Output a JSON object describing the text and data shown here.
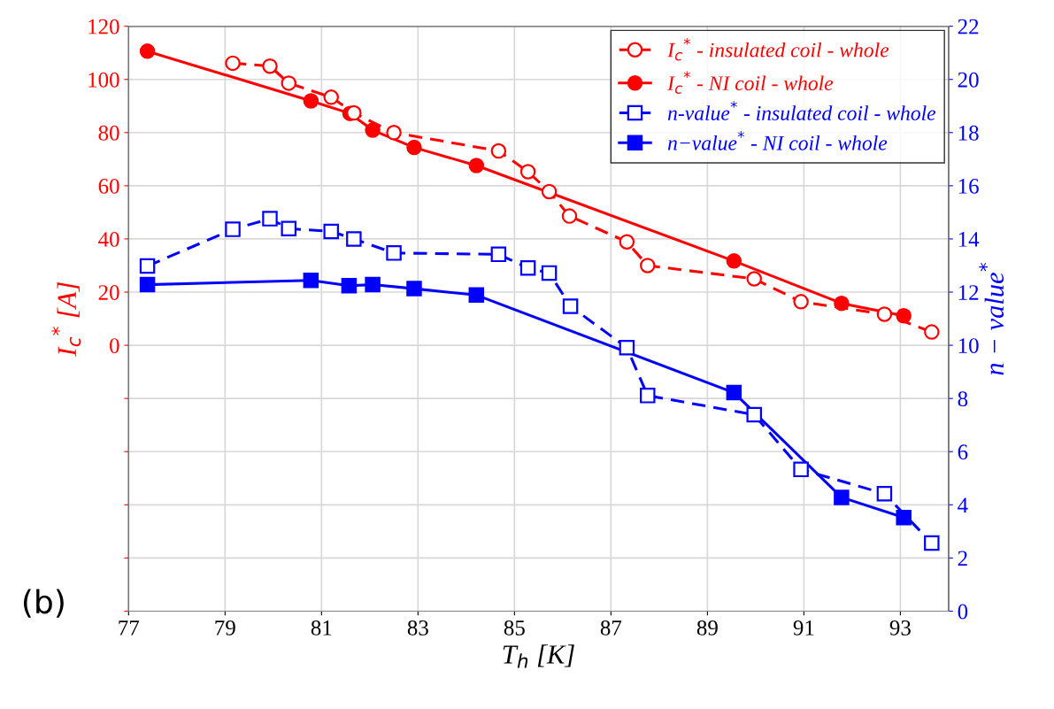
{
  "chart_data": {
    "type": "line",
    "xlabel": "T$_{h}$ [K]",
    "ylabel": "I$_{c}$$^{*}$ [A]",
    "y2label": "n − value$^{*}$",
    "xlim": [
      77,
      94
    ],
    "xticks": [
      77,
      79,
      81,
      83,
      85,
      87,
      89,
      91,
      93
    ],
    "ylim": [
      -100,
      120
    ],
    "yticks": [
      {
        "value": -100,
        "label": null
      },
      {
        "value": -80,
        "label": null
      },
      {
        "value": -60,
        "label": null
      },
      {
        "value": -40,
        "label": null
      },
      {
        "value": -20,
        "label": null
      },
      0,
      20,
      40,
      60,
      80,
      100,
      120
    ],
    "y2lim": [
      0,
      22
    ],
    "y2ticks": [
      0,
      2,
      4,
      6,
      8,
      10,
      12,
      14,
      16,
      18,
      20,
      22
    ],
    "grid": true,
    "legend": "top right",
    "annotations": [
      "(b)"
    ],
    "series": [
      {
        "name": "I$_{c}$$^{*}$ - insulated coil - whole",
        "color": "#ff0000",
        "axis": "y",
        "marker": "circle",
        "line_style": "dashed",
        "x": [
          79.16,
          79.93,
          80.32,
          81.2,
          81.67,
          82.5,
          84.67,
          85.28,
          85.72,
          86.14,
          87.33,
          87.76,
          89.97,
          90.94,
          92.67,
          93.65
        ],
        "values": [
          106.1,
          105,
          98.6,
          93.3,
          87.4,
          80,
          73.1,
          65.3,
          57.8,
          48.6,
          38.9,
          30,
          25,
          16.4,
          11.7,
          5
        ]
      },
      {
        "name": "I$_{c}$$^{*}$ - NI coil - whole",
        "color": "#ff0000",
        "axis": "y",
        "marker": "circle",
        "line_style": "solid",
        "x": [
          77.39,
          80.78,
          81.59,
          82.06,
          82.92,
          84.21,
          89.55,
          91.78,
          93.07
        ],
        "values": [
          110.6,
          91.9,
          87.2,
          80.9,
          74.4,
          67.6,
          31.7,
          15.8,
          11.1
        ]
      },
      {
        "name": "n-value$^{*}$ - insulated coil - whole",
        "color": "#0000ff",
        "axis": "y2",
        "marker": "square",
        "line_style": "dashed",
        "x": [
          77.39,
          79.16,
          79.93,
          80.32,
          81.2,
          81.67,
          82.5,
          84.67,
          85.28,
          85.72,
          86.16,
          87.33,
          87.76,
          89.97,
          90.94,
          92.67,
          93.65
        ],
        "values": [
          12.98,
          14.36,
          14.76,
          14.39,
          14.28,
          14.0,
          13.47,
          13.42,
          12.91,
          12.72,
          11.47,
          9.91,
          8.11,
          7.39,
          5.33,
          4.42,
          2.56
        ]
      },
      {
        "name": "n−value$^{*}$ - NI coil - whole",
        "color": "#0000ff",
        "axis": "y2",
        "marker": "square",
        "line_style": "solid",
        "x": [
          77.39,
          80.78,
          81.57,
          82.06,
          82.92,
          84.21,
          89.55,
          91.78,
          93.07
        ],
        "values": [
          12.28,
          12.44,
          12.24,
          12.28,
          12.13,
          11.89,
          8.22,
          4.28,
          3.52
        ]
      }
    ]
  }
}
